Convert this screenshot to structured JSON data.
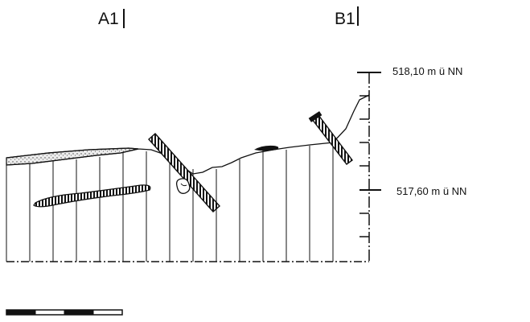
{
  "section_labels": {
    "left": "A1",
    "right": "B1"
  },
  "elevations": {
    "upper": "518,10 m ü NN",
    "lower": "517,60 m ü NN"
  },
  "colors": {
    "ink": "#111111",
    "paper": "#ffffff",
    "stipple": "#d8d8d8"
  }
}
